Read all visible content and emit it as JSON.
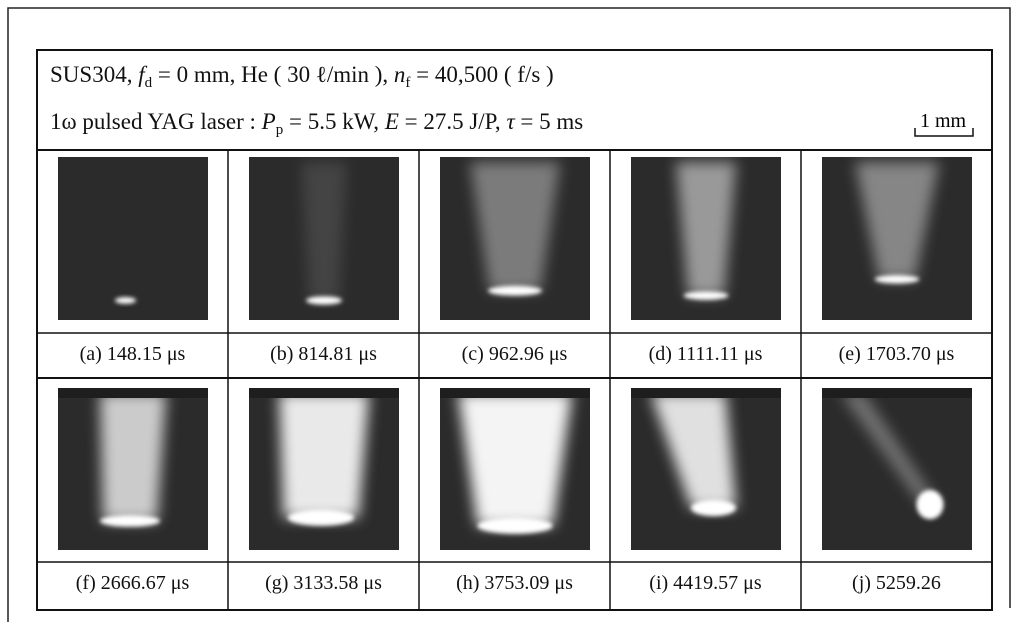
{
  "header": {
    "line1": [
      "SUS304, ",
      "f",
      "d",
      " = 0 mm, He ( 30 ℓ/min ), ",
      "n",
      "f",
      " = 40,500 ( f/s )"
    ],
    "line2": [
      "1ω pulsed YAG laser : ",
      "P",
      "p",
      " = 5.5 kW, ",
      "E",
      " = 27.5 J/P, ",
      "τ",
      " = 5 ms"
    ]
  },
  "scale_bar": "1 mm",
  "panels": [
    {
      "label": "(a) 148.15 μs"
    },
    {
      "label": "(b) 814.81 μs"
    },
    {
      "label": "(c) 962.96 μs"
    },
    {
      "label": "(d) 1111.11 μs"
    },
    {
      "label": "(e) 1703.70 μs"
    },
    {
      "label": "(f) 2666.67 μs"
    },
    {
      "label": "(g) 3133.58 μs"
    },
    {
      "label": "(h) 3753.09 μs"
    },
    {
      "label": "(i) 4419.57 μs"
    },
    {
      "label": "(j) 5259.26"
    }
  ]
}
